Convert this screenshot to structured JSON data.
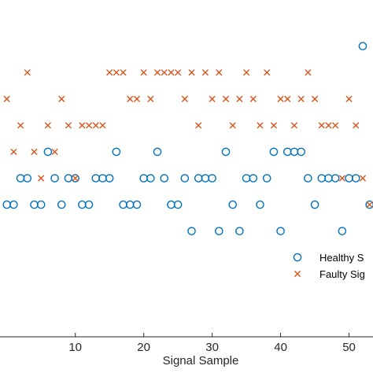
{
  "chart_data": {
    "type": "scatter",
    "xlabel": "Signal Sample",
    "ylabel": "",
    "title": "",
    "xlim": [
      -1,
      53.5
    ],
    "ylim": [
      -3,
      9
    ],
    "x_ticks": [
      10,
      20,
      30,
      40,
      50
    ],
    "grid": false,
    "legend_placement": "bottom-right",
    "series": [
      {
        "name": "Healthy S",
        "marker": "circle",
        "color": "#0072BD",
        "points": [
          {
            "x": 0,
            "y": 2
          },
          {
            "x": 1,
            "y": 2
          },
          {
            "x": 2,
            "y": 3
          },
          {
            "x": 3,
            "y": 3
          },
          {
            "x": 4,
            "y": 2
          },
          {
            "x": 5,
            "y": 2
          },
          {
            "x": 6,
            "y": 4
          },
          {
            "x": 7,
            "y": 3
          },
          {
            "x": 8,
            "y": 2
          },
          {
            "x": 9,
            "y": 3
          },
          {
            "x": 10,
            "y": 3
          },
          {
            "x": 11,
            "y": 2
          },
          {
            "x": 12,
            "y": 2
          },
          {
            "x": 13,
            "y": 3
          },
          {
            "x": 14,
            "y": 3
          },
          {
            "x": 15,
            "y": 3
          },
          {
            "x": 16,
            "y": 4
          },
          {
            "x": 17,
            "y": 2
          },
          {
            "x": 18,
            "y": 2
          },
          {
            "x": 19,
            "y": 2
          },
          {
            "x": 20,
            "y": 3
          },
          {
            "x": 21,
            "y": 3
          },
          {
            "x": 22,
            "y": 4
          },
          {
            "x": 23,
            "y": 3
          },
          {
            "x": 24,
            "y": 2
          },
          {
            "x": 25,
            "y": 2
          },
          {
            "x": 26,
            "y": 3
          },
          {
            "x": 27,
            "y": 1
          },
          {
            "x": 28,
            "y": 3
          },
          {
            "x": 29,
            "y": 3
          },
          {
            "x": 30,
            "y": 3
          },
          {
            "x": 31,
            "y": 1
          },
          {
            "x": 32,
            "y": 4
          },
          {
            "x": 33,
            "y": 2
          },
          {
            "x": 34,
            "y": 1
          },
          {
            "x": 35,
            "y": 3
          },
          {
            "x": 36,
            "y": 3
          },
          {
            "x": 37,
            "y": 2
          },
          {
            "x": 38,
            "y": 3
          },
          {
            "x": 39,
            "y": 4
          },
          {
            "x": 40,
            "y": 1
          },
          {
            "x": 41,
            "y": 4
          },
          {
            "x": 42,
            "y": 4
          },
          {
            "x": 43,
            "y": 4
          },
          {
            "x": 44,
            "y": 3
          },
          {
            "x": 45,
            "y": 2
          },
          {
            "x": 46,
            "y": 3
          },
          {
            "x": 47,
            "y": 3
          },
          {
            "x": 48,
            "y": 3
          },
          {
            "x": 49,
            "y": 1
          },
          {
            "x": 50,
            "y": 3
          },
          {
            "x": 51,
            "y": 3
          },
          {
            "x": 52,
            "y": 8
          },
          {
            "x": 53,
            "y": 2
          }
        ]
      },
      {
        "name": "Faulty Sig",
        "marker": "x",
        "color": "#D95319",
        "points": [
          {
            "x": 0,
            "y": 6
          },
          {
            "x": 1,
            "y": 4
          },
          {
            "x": 2,
            "y": 5
          },
          {
            "x": 3,
            "y": 7
          },
          {
            "x": 4,
            "y": 4
          },
          {
            "x": 5,
            "y": 3
          },
          {
            "x": 6,
            "y": 5
          },
          {
            "x": 7,
            "y": 4
          },
          {
            "x": 8,
            "y": 6
          },
          {
            "x": 9,
            "y": 5
          },
          {
            "x": 10,
            "y": 3
          },
          {
            "x": 11,
            "y": 5
          },
          {
            "x": 12,
            "y": 5
          },
          {
            "x": 13,
            "y": 5
          },
          {
            "x": 14,
            "y": 5
          },
          {
            "x": 15,
            "y": 7
          },
          {
            "x": 16,
            "y": 7
          },
          {
            "x": 17,
            "y": 7
          },
          {
            "x": 18,
            "y": 6
          },
          {
            "x": 19,
            "y": 6
          },
          {
            "x": 20,
            "y": 7
          },
          {
            "x": 21,
            "y": 6
          },
          {
            "x": 22,
            "y": 7
          },
          {
            "x": 23,
            "y": 7
          },
          {
            "x": 24,
            "y": 7
          },
          {
            "x": 25,
            "y": 7
          },
          {
            "x": 26,
            "y": 6
          },
          {
            "x": 27,
            "y": 7
          },
          {
            "x": 28,
            "y": 5
          },
          {
            "x": 29,
            "y": 7
          },
          {
            "x": 30,
            "y": 6
          },
          {
            "x": 31,
            "y": 7
          },
          {
            "x": 32,
            "y": 6
          },
          {
            "x": 33,
            "y": 5
          },
          {
            "x": 34,
            "y": 6
          },
          {
            "x": 35,
            "y": 7
          },
          {
            "x": 36,
            "y": 6
          },
          {
            "x": 37,
            "y": 5
          },
          {
            "x": 38,
            "y": 7
          },
          {
            "x": 39,
            "y": 5
          },
          {
            "x": 40,
            "y": 6
          },
          {
            "x": 41,
            "y": 6
          },
          {
            "x": 42,
            "y": 5
          },
          {
            "x": 43,
            "y": 6
          },
          {
            "x": 44,
            "y": 7
          },
          {
            "x": 45,
            "y": 6
          },
          {
            "x": 46,
            "y": 5
          },
          {
            "x": 47,
            "y": 5
          },
          {
            "x": 48,
            "y": 5
          },
          {
            "x": 49,
            "y": 3
          },
          {
            "x": 50,
            "y": 6
          },
          {
            "x": 51,
            "y": 5
          },
          {
            "x": 52,
            "y": 3
          },
          {
            "x": 53,
            "y": 2
          }
        ]
      }
    ]
  }
}
